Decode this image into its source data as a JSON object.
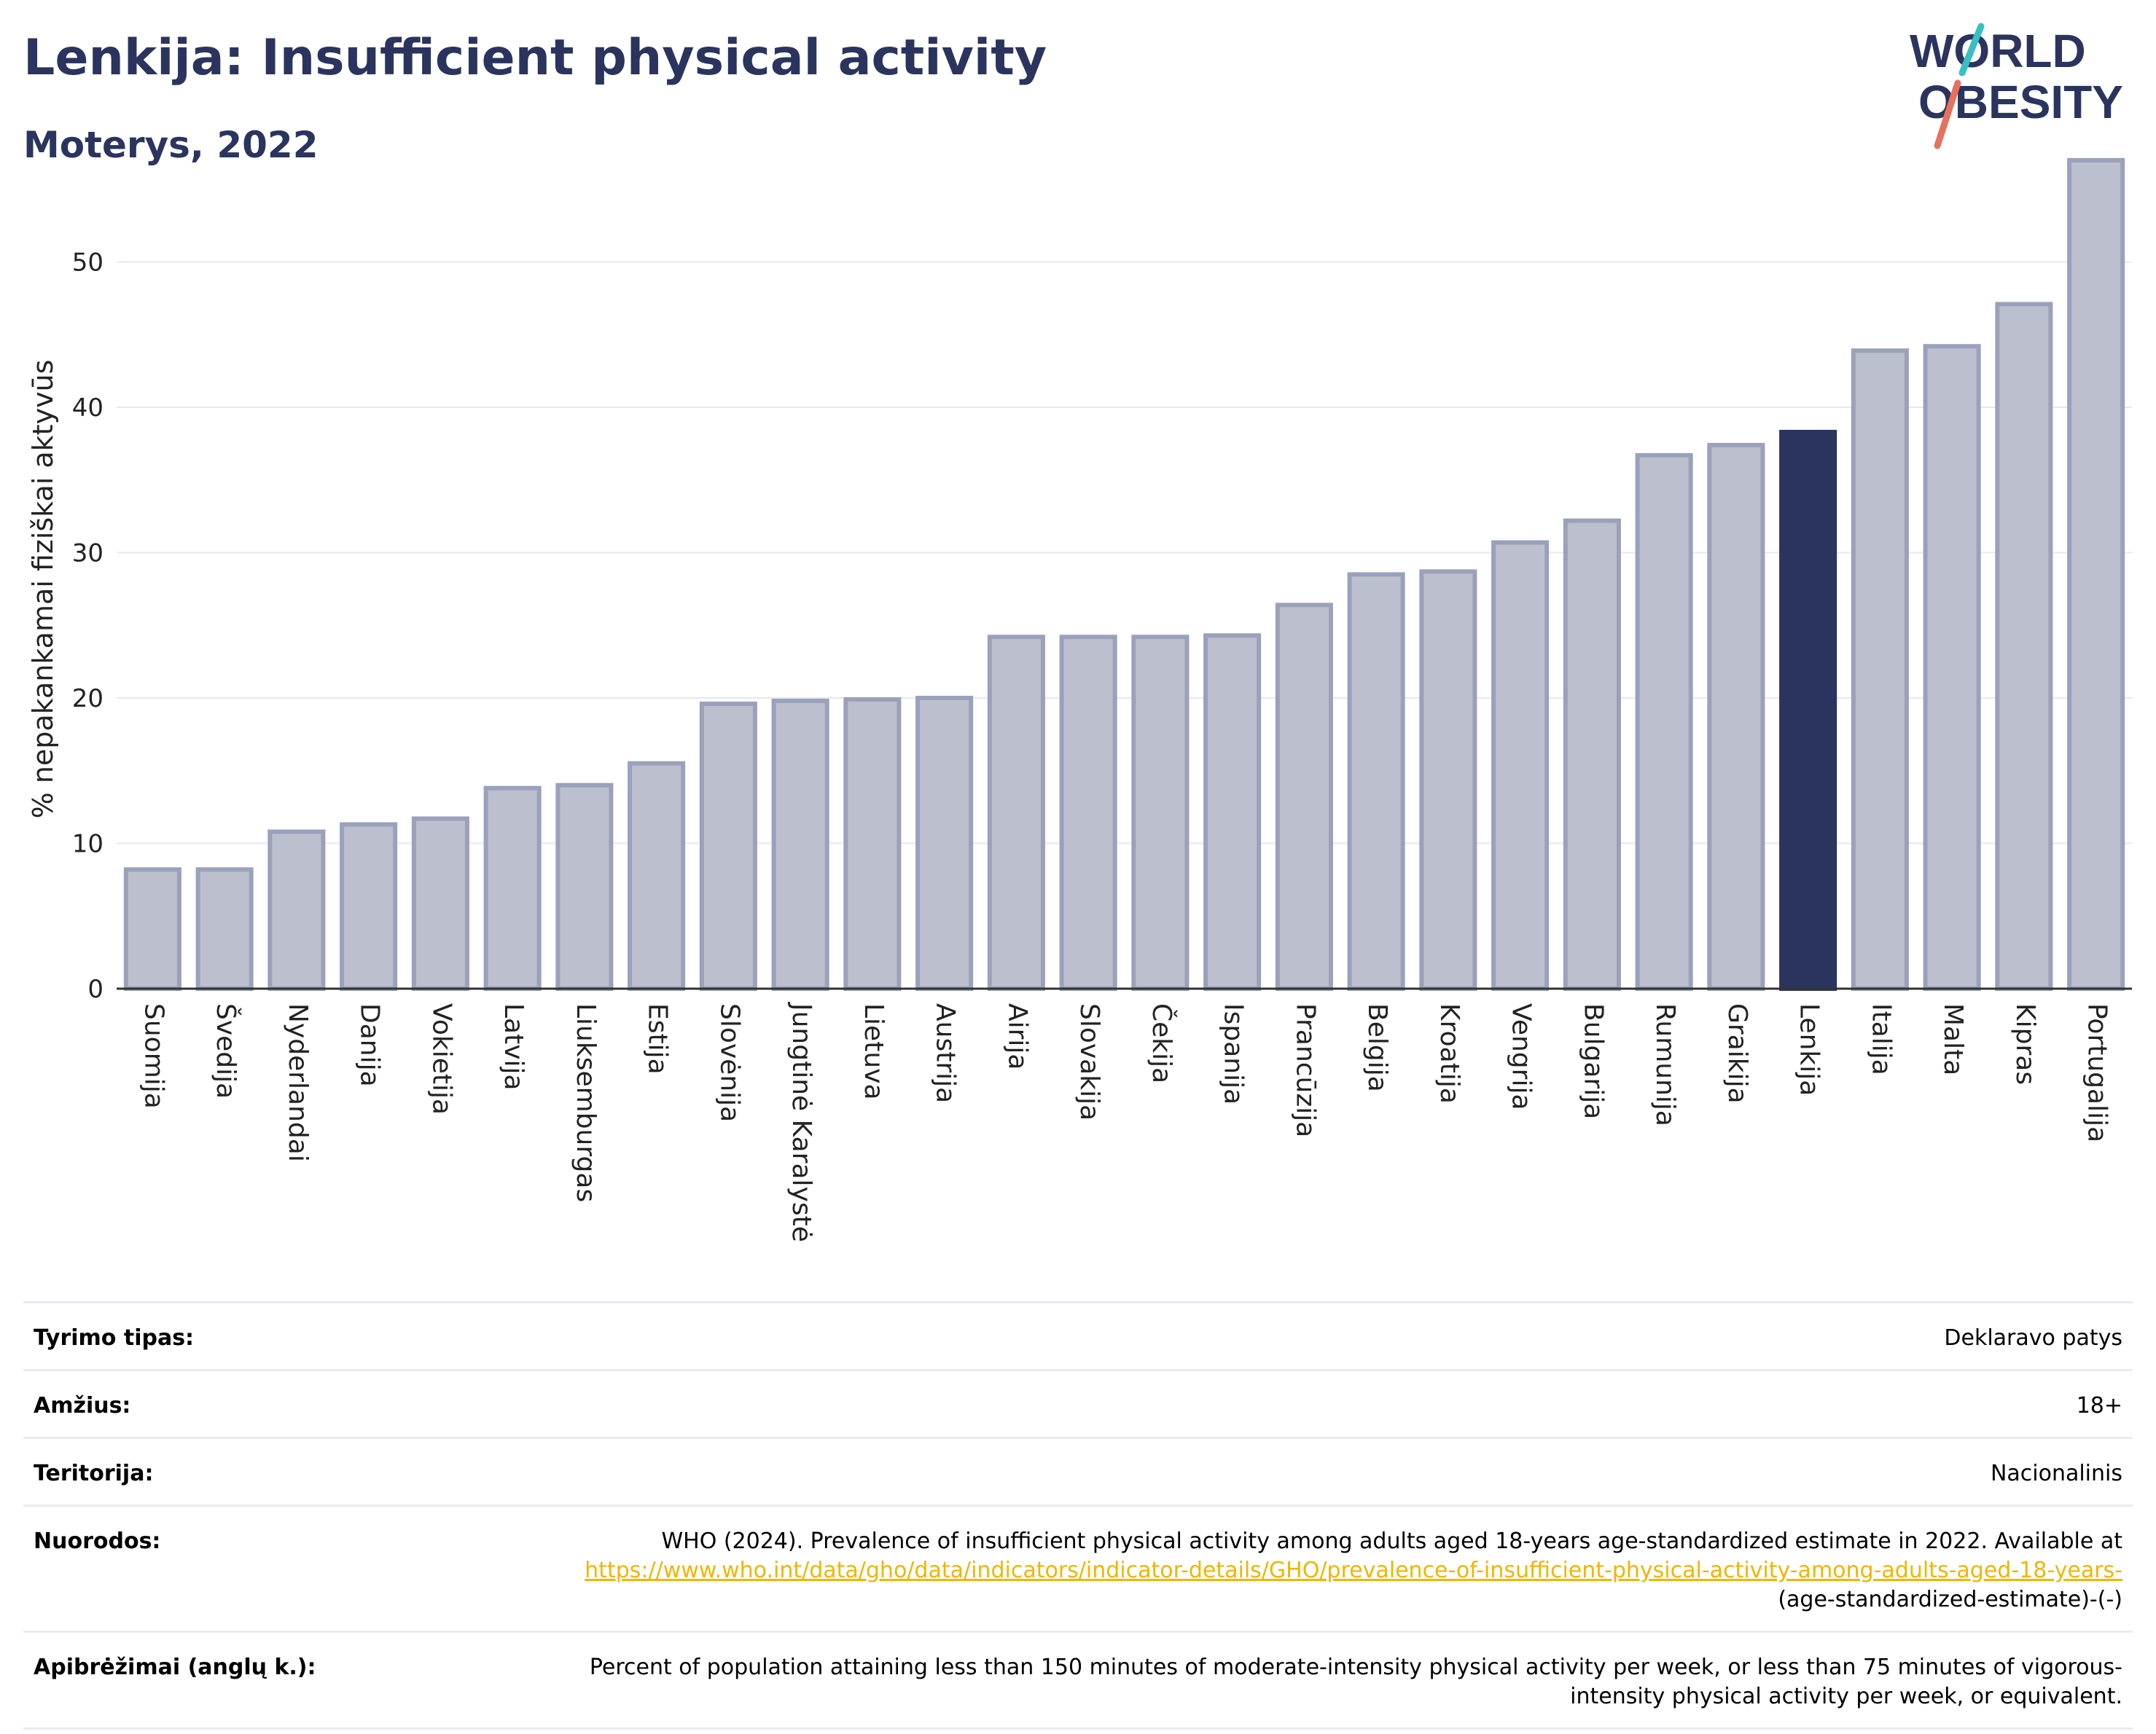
{
  "header": {
    "title": "Lenkija: Insufficient physical activity",
    "subtitle": "Moterys, 2022"
  },
  "logo": {
    "line1": "WORLD",
    "line2": "OBESITY",
    "text_color": "#2a345e",
    "slash_colors": [
      "#38c0c0",
      "#e8705e"
    ]
  },
  "chart_data": {
    "type": "bar",
    "ylabel": "% nepakankamai fiziškai aktyvūs",
    "xlabel": "",
    "ylim": [
      0,
      59
    ],
    "yticks": [
      0,
      10,
      20,
      30,
      40,
      50
    ],
    "grid": true,
    "highlight": "Lenkija",
    "colors": {
      "bar": "#bcc0ce",
      "bar_edge": "#9aa1ba",
      "highlight": "#2a345e"
    },
    "categories": [
      "Suomija",
      "Švedija",
      "Nyderlandai",
      "Danija",
      "Vokietija",
      "Latvija",
      "Liuksemburgas",
      "Estija",
      "Slovėnija",
      "Jungtinė Karalystė",
      "Lietuva",
      "Austrija",
      "Airija",
      "Slovakija",
      "Čekija",
      "Ispanija",
      "Prancūzija",
      "Belgija",
      "Kroatija",
      "Vengrija",
      "Bulgarija",
      "Rumunija",
      "Graikija",
      "Lenkija",
      "Italija",
      "Malta",
      "Kipras",
      "Portugalija"
    ],
    "values": [
      8.2,
      8.2,
      10.8,
      11.3,
      11.7,
      13.8,
      14.0,
      15.5,
      19.6,
      19.8,
      19.9,
      20.0,
      24.2,
      24.2,
      24.2,
      24.3,
      26.4,
      28.5,
      28.7,
      30.7,
      32.2,
      36.7,
      37.4,
      38.3,
      43.9,
      44.2,
      47.1,
      57.0
    ]
  },
  "info": {
    "survey_type": {
      "label": "Tyrimo tipas:",
      "value": "Deklaravo patys"
    },
    "age": {
      "label": "Amžius:",
      "value": "18+"
    },
    "territory": {
      "label": "Teritorija:",
      "value": "Nacionalinis"
    },
    "references": {
      "label": "Nuorodos:",
      "text": "WHO (2024). Prevalence of insufficient physical activity among adults aged 18-years age-standardized estimate in 2022. Available at ",
      "link": "https://www.who.int/data/gho/data/indicators/indicator-details/GHO/prevalence-of-insufficient-physical-activity-among-adults-aged-18-years-",
      "suffix": "(age-standardized-estimate)-(-)"
    },
    "definitions": {
      "label": "Apibrėžimai (anglų k.):",
      "value": "Percent of population attaining less than 150 minutes of moderate-intensity physical activity per week, or less than 75 minutes of vigorous-intensity physical activity per week, or equivalent."
    }
  }
}
